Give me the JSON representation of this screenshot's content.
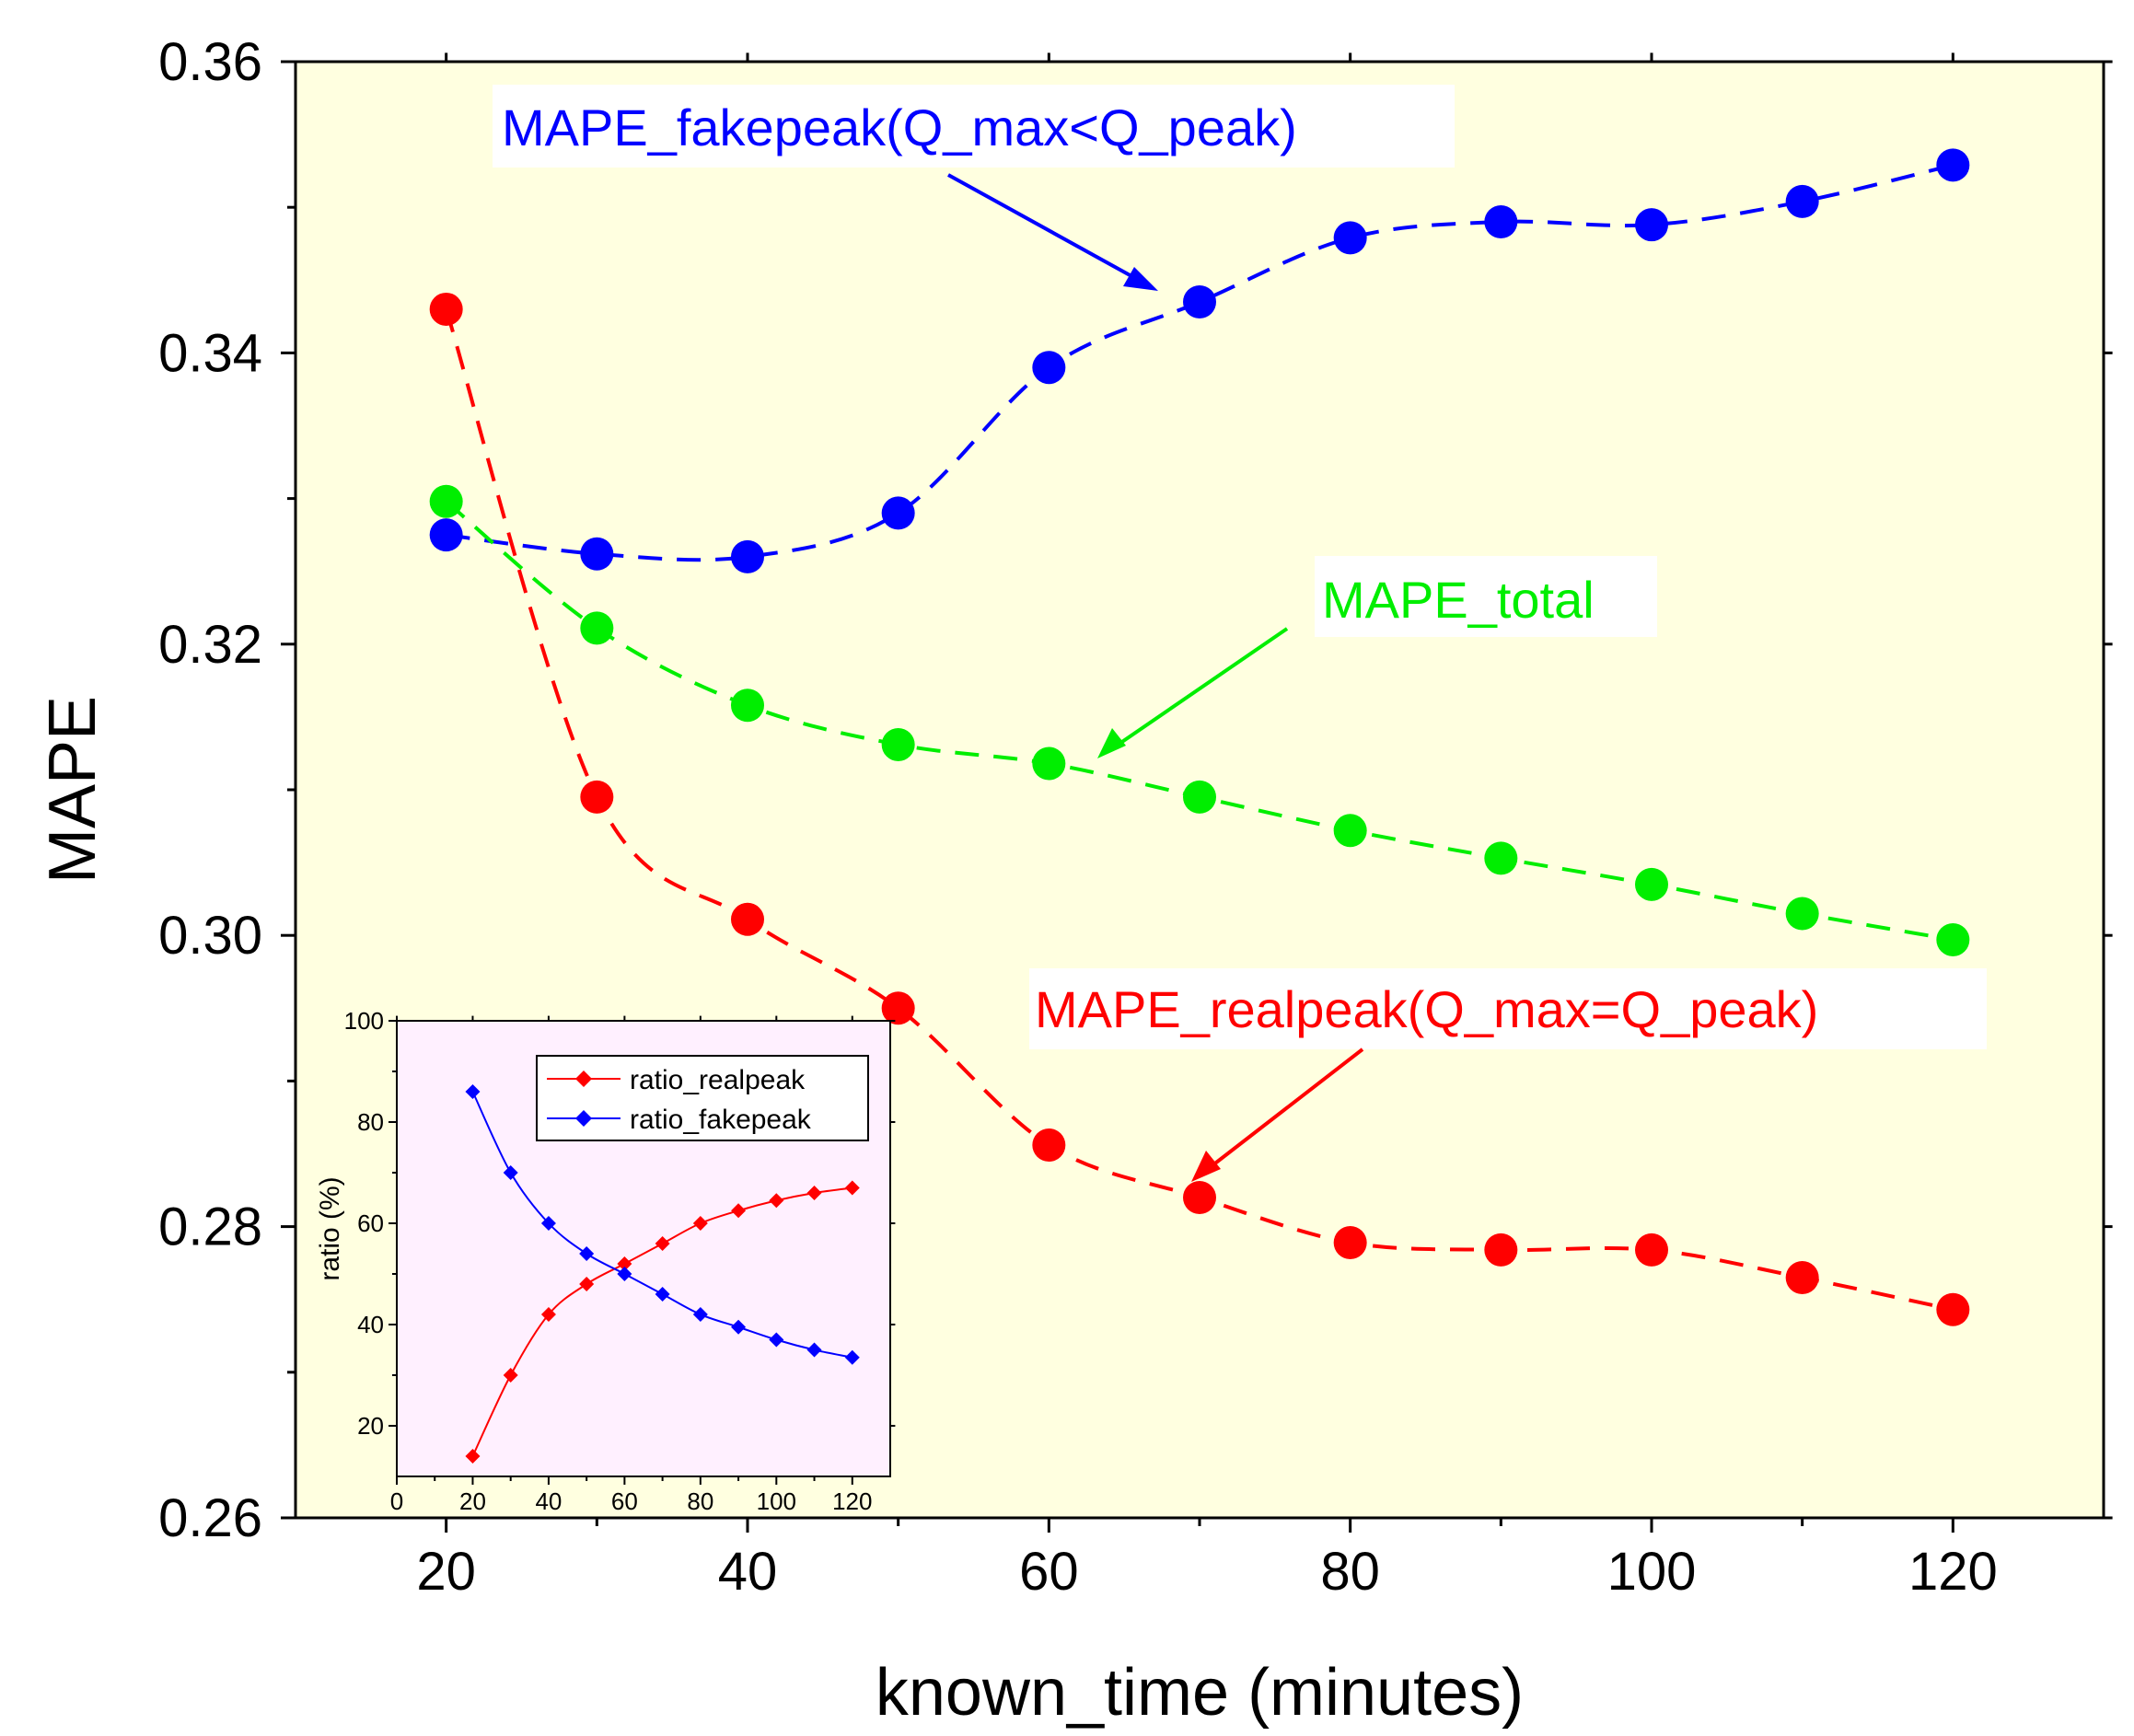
{
  "chart_data": [
    {
      "type": "line",
      "name": "main",
      "xlabel": "known_time (minutes)",
      "ylabel": "MAPE",
      "xlim": [
        10,
        130
      ],
      "ylim": [
        0.26,
        0.36
      ],
      "xticks": [
        20,
        40,
        60,
        80,
        100,
        120
      ],
      "xtick_labels": [
        "20",
        "40",
        "60",
        "80",
        "100",
        "120"
      ],
      "yticks": [
        0.26,
        0.28,
        0.3,
        0.32,
        0.34,
        0.36
      ],
      "ytick_labels": [
        "0.26",
        "0.28",
        "0.30",
        "0.32",
        "0.34",
        "0.36"
      ],
      "x": [
        20,
        30,
        40,
        50,
        60,
        70,
        80,
        90,
        100,
        110,
        120
      ],
      "series": [
        {
          "name": "MAPE_fakepeak",
          "color": "#0000ff",
          "values": [
            0.3275,
            0.3262,
            0.326,
            0.329,
            0.339,
            0.3435,
            0.3479,
            0.349,
            0.3488,
            0.3504,
            0.3529
          ]
        },
        {
          "name": "MAPE_total",
          "color": "#00ee00",
          "values": [
            0.3298,
            0.3211,
            0.3158,
            0.3131,
            0.3118,
            0.3095,
            0.3072,
            0.3053,
            0.3035,
            0.3015,
            0.2997
          ]
        },
        {
          "name": "MAPE_realpeak",
          "color": "#ff0000",
          "values": [
            0.343,
            0.3095,
            0.3011,
            0.295,
            0.2856,
            0.282,
            0.2789,
            0.2784,
            0.2784,
            0.2765,
            0.2743
          ]
        }
      ],
      "annotations": [
        {
          "text": "MAPE_fakepeak(Q_max<Q_peak)",
          "color": "#0000ff",
          "points_to": [
            67,
            0.3435
          ]
        },
        {
          "text": "MAPE_total",
          "color": "#00ee00",
          "points_to": [
            63,
            0.3118
          ]
        },
        {
          "text": "MAPE_realpeak(Q_max=Q_peak)",
          "color": "#ff0000",
          "points_to": [
            68.5,
            0.282
          ]
        }
      ],
      "background": "#ffffe0"
    },
    {
      "type": "line",
      "name": "inset",
      "xlabel": "",
      "ylabel": "ratio (%)",
      "xlim": [
        0,
        130
      ],
      "ylim": [
        10,
        100
      ],
      "xticks": [
        0,
        20,
        40,
        60,
        80,
        100,
        120
      ],
      "xtick_labels": [
        "0",
        "20",
        "40",
        "60",
        "80",
        "100",
        "120"
      ],
      "yticks": [
        20,
        40,
        60,
        80,
        100
      ],
      "ytick_labels": [
        "20",
        "40",
        "60",
        "80",
        "100"
      ],
      "x": [
        20,
        30,
        40,
        50,
        60,
        70,
        80,
        90,
        100,
        110,
        120
      ],
      "series": [
        {
          "name": "ratio_realpeak",
          "color": "#ff0000",
          "values": [
            14,
            30,
            42,
            48,
            52,
            56,
            60,
            62.5,
            64.5,
            66,
            67
          ]
        },
        {
          "name": "ratio_fakepeak",
          "color": "#0000ff",
          "values": [
            86,
            70,
            60,
            54,
            50,
            46,
            42,
            39.5,
            37,
            35,
            33.5
          ]
        }
      ],
      "legend": [
        "ratio_realpeak",
        "ratio_fakepeak"
      ],
      "legend_position": "top-right",
      "background": "#fff0ff"
    }
  ]
}
